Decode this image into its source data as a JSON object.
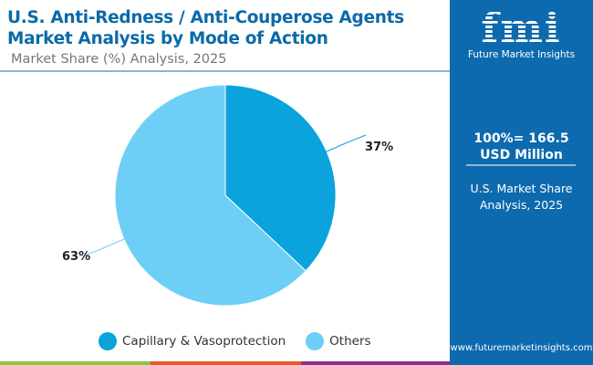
{
  "chart_data": {
    "type": "pie",
    "title": "U.S. Anti-Redness / Anti-Couperose Agents Market Analysis by Mode of Action",
    "subtitle": "Market Share (%) Analysis, 2025",
    "categories": [
      "Capillary & Vasoprotection",
      "Others"
    ],
    "values": [
      37,
      63
    ],
    "data_labels": [
      "37%",
      "63%"
    ],
    "colors": [
      "#0aa3dc",
      "#6dcff5"
    ],
    "legend_placement": "bottom"
  },
  "panel": {
    "logo_text": "fmi",
    "logo_sub": "Future Market Insights",
    "total": "100%= 166.5 USD Million",
    "sub": "U.S. Market Share Analysis, 2025",
    "url": "www.futuremarketinsights.com",
    "color": "#0d6aae"
  },
  "strip_colors": [
    "#8bc43f",
    "#e8582a",
    "#8b2f8e"
  ]
}
